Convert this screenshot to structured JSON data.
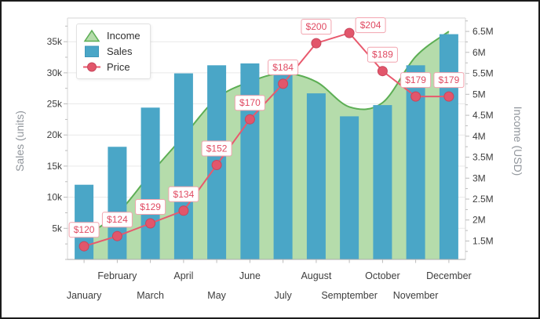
{
  "window": {
    "background": "#ffffff",
    "frame_color": "#1b1b1b"
  },
  "chart_data": {
    "type": [
      "area",
      "bar",
      "line"
    ],
    "title": "",
    "categories": [
      "January",
      "February",
      "March",
      "April",
      "May",
      "June",
      "July",
      "August",
      "Semptember",
      "October",
      "November",
      "December"
    ],
    "series": [
      {
        "name": "Income",
        "type": "area",
        "axis": "income",
        "smooth": true,
        "values": [
          1.6,
          2.15,
          3.1,
          4.0,
          4.9,
          5.3,
          5.5,
          5.3,
          4.7,
          4.8,
          5.9,
          6.5
        ],
        "unit": "M USD",
        "fill": "#b5dcab",
        "stroke": "#5cae54"
      },
      {
        "name": "Sales",
        "type": "bar",
        "axis": "sales",
        "values": [
          12000,
          18100,
          24400,
          29900,
          31200,
          31500,
          30000,
          26700,
          23000,
          24800,
          31200,
          36200
        ],
        "unit": "units",
        "fill": "#4aa6c7",
        "stroke": "#3f97b9"
      },
      {
        "name": "Price",
        "type": "line",
        "axis": "price",
        "values": [
          120,
          124,
          129,
          134,
          152,
          170,
          184,
          200,
          204,
          189,
          179,
          179
        ],
        "labels": [
          "$120",
          "$124",
          "$129",
          "$134",
          "$152",
          "$170",
          "$184",
          "$200",
          "$204",
          "$189",
          "$179",
          "$179"
        ],
        "unit": "USD",
        "color": "#e8596d",
        "point_fill": "#e2566b",
        "point_stroke": "#c8465c",
        "label_text_color": "#e04a62",
        "label_border_color": "#f2a3ae",
        "label_bg": "#ffffff",
        "label_offset_default": [
          0,
          -21
        ],
        "label_offset_overrides": {
          "8": [
            27,
            -10
          ]
        }
      }
    ],
    "axes": {
      "sales": {
        "title": "Sales (units)",
        "position": "left",
        "tick_labels": [
          "5k",
          "10k",
          "15k",
          "20k",
          "25k",
          "30k",
          "35k"
        ],
        "tick_values": [
          5000,
          10000,
          15000,
          20000,
          25000,
          30000,
          35000
        ],
        "minor_step": 2500,
        "ylim": [
          0,
          38800
        ]
      },
      "income": {
        "title": "Income (USD)",
        "position": "right",
        "tick_labels": [
          "1.5M",
          "2M",
          "2.5M",
          "3M",
          "3.5M",
          "4M",
          "4.5M",
          "5M",
          "5.5M",
          "6M",
          "6.5M"
        ],
        "tick_values": [
          1.5,
          2,
          2.5,
          3,
          3.5,
          4,
          4.5,
          5,
          5.5,
          6,
          6.5
        ],
        "minor_step": 0.25,
        "ylim": [
          1.06,
          6.82
        ]
      },
      "price": {
        "title": "",
        "position": "hidden",
        "ylim": [
          114.8,
          209.9
        ]
      }
    },
    "grid": {
      "horizontal": true,
      "color": "#e9e9e9"
    },
    "legend": {
      "position": "top-left",
      "items": [
        {
          "label": "Income",
          "marker": "triangle"
        },
        {
          "label": "Sales",
          "marker": "square"
        },
        {
          "label": "Price",
          "marker": "circle-line"
        }
      ]
    },
    "styles": {
      "tick_label_color": "#3d3d3d",
      "axis_title_color": "#90959b",
      "axis_line_color": "#d6d6d6",
      "baseline_color": "#ababab",
      "tick_color": "#bcbcbc",
      "legend_text_color": "#2f2f2f"
    }
  }
}
